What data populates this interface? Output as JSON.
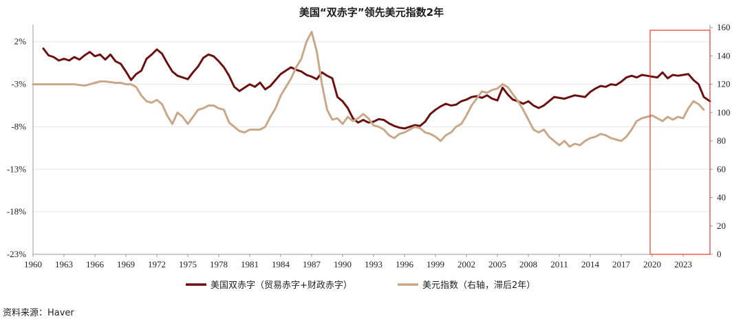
{
  "chart_data": {
    "type": "line",
    "title": "美国“双赤字”领先美元指数2年",
    "x_ticks": [
      "1960",
      "1963",
      "1966",
      "1969",
      "1972",
      "1975",
      "1978",
      "1981",
      "1984",
      "1987",
      "1990",
      "1993",
      "1996",
      "1999",
      "2002",
      "2005",
      "2008",
      "2011",
      "2014",
      "2017",
      "2020",
      "2023"
    ],
    "xlim": [
      1960,
      2025.6
    ],
    "y_left": {
      "ticks": [
        "2%",
        "-3%",
        "-8%",
        "-13%",
        "-18%",
        "-23%"
      ],
      "range": [
        -23,
        4
      ]
    },
    "y_right": {
      "ticks": [
        "0",
        "20",
        "40",
        "60",
        "80",
        "100",
        "120",
        "140",
        "160"
      ],
      "range": [
        0,
        162
      ]
    },
    "highlight_box": {
      "x_range": [
        2019.8,
        2025.6
      ],
      "color": "#e8322e"
    },
    "series": [
      {
        "name": "美国双赤字（贸易赤字+财政赤字）",
        "axis": "left",
        "color": "#6b0f0f",
        "points": [
          [
            1961.0,
            1.2
          ],
          [
            1961.5,
            0.4
          ],
          [
            1962.0,
            0.2
          ],
          [
            1962.5,
            -0.2
          ],
          [
            1963.0,
            0.0
          ],
          [
            1963.5,
            -0.2
          ],
          [
            1964.0,
            0.2
          ],
          [
            1964.5,
            -0.1
          ],
          [
            1965.0,
            0.4
          ],
          [
            1965.5,
            0.8
          ],
          [
            1966.0,
            0.3
          ],
          [
            1966.5,
            0.5
          ],
          [
            1967.0,
            -0.1
          ],
          [
            1967.5,
            0.5
          ],
          [
            1968.0,
            -0.3
          ],
          [
            1968.5,
            -0.6
          ],
          [
            1969.0,
            -1.5
          ],
          [
            1969.5,
            -2.5
          ],
          [
            1970.0,
            -1.8
          ],
          [
            1970.5,
            -1.4
          ],
          [
            1971.0,
            0.0
          ],
          [
            1971.5,
            0.5
          ],
          [
            1972.0,
            1.1
          ],
          [
            1972.5,
            0.6
          ],
          [
            1973.0,
            -0.5
          ],
          [
            1973.5,
            -1.5
          ],
          [
            1974.0,
            -2.0
          ],
          [
            1974.5,
            -2.2
          ],
          [
            1975.0,
            -2.4
          ],
          [
            1975.5,
            -1.6
          ],
          [
            1976.0,
            -0.9
          ],
          [
            1976.5,
            0.1
          ],
          [
            1977.0,
            0.5
          ],
          [
            1977.5,
            0.3
          ],
          [
            1978.0,
            -0.3
          ],
          [
            1978.5,
            -1.0
          ],
          [
            1979.0,
            -2.0
          ],
          [
            1979.5,
            -3.3
          ],
          [
            1980.0,
            -3.8
          ],
          [
            1980.5,
            -3.4
          ],
          [
            1981.0,
            -3.0
          ],
          [
            1981.5,
            -3.3
          ],
          [
            1982.0,
            -2.8
          ],
          [
            1982.5,
            -3.6
          ],
          [
            1983.0,
            -3.2
          ],
          [
            1983.5,
            -2.5
          ],
          [
            1984.0,
            -1.8
          ],
          [
            1984.5,
            -1.4
          ],
          [
            1985.0,
            -1.0
          ],
          [
            1985.5,
            -1.3
          ],
          [
            1986.0,
            -1.5
          ],
          [
            1986.5,
            -1.9
          ],
          [
            1987.0,
            -2.1
          ],
          [
            1987.5,
            -2.4
          ],
          [
            1988.0,
            -1.6
          ],
          [
            1988.5,
            -2.0
          ],
          [
            1989.0,
            -2.3
          ],
          [
            1989.5,
            -4.5
          ],
          [
            1990.0,
            -5.0
          ],
          [
            1990.5,
            -5.8
          ],
          [
            1991.0,
            -7.0
          ],
          [
            1991.5,
            -7.5
          ],
          [
            1992.0,
            -7.2
          ],
          [
            1992.5,
            -7.5
          ],
          [
            1993.0,
            -7.4
          ],
          [
            1993.5,
            -7.1
          ],
          [
            1994.0,
            -7.2
          ],
          [
            1994.5,
            -7.6
          ],
          [
            1995.0,
            -7.9
          ],
          [
            1995.5,
            -8.1
          ],
          [
            1996.0,
            -8.2
          ],
          [
            1996.5,
            -8.0
          ],
          [
            1997.0,
            -7.8
          ],
          [
            1997.5,
            -7.9
          ],
          [
            1998.0,
            -7.4
          ],
          [
            1998.5,
            -6.5
          ],
          [
            1999.0,
            -6.0
          ],
          [
            1999.5,
            -5.6
          ],
          [
            2000.0,
            -5.3
          ],
          [
            2000.5,
            -5.5
          ],
          [
            2001.0,
            -5.4
          ],
          [
            2001.5,
            -5.0
          ],
          [
            2002.0,
            -4.8
          ],
          [
            2002.5,
            -4.5
          ],
          [
            2003.0,
            -4.4
          ],
          [
            2003.5,
            -4.6
          ],
          [
            2004.0,
            -4.3
          ],
          [
            2004.5,
            -4.7
          ],
          [
            2005.0,
            -4.9
          ],
          [
            2005.5,
            -3.4
          ],
          [
            2006.0,
            -4.2
          ],
          [
            2006.5,
            -4.8
          ],
          [
            2007.0,
            -5.0
          ],
          [
            2007.5,
            -5.3
          ],
          [
            2008.0,
            -5.0
          ],
          [
            2008.5,
            -5.5
          ],
          [
            2009.0,
            -5.8
          ],
          [
            2009.5,
            -5.5
          ],
          [
            2010.0,
            -5.0
          ],
          [
            2010.5,
            -4.5
          ],
          [
            2011.0,
            -4.6
          ],
          [
            2011.5,
            -4.7
          ],
          [
            2012.0,
            -4.5
          ],
          [
            2012.5,
            -4.3
          ],
          [
            2013.0,
            -4.4
          ],
          [
            2013.5,
            -4.5
          ],
          [
            2014.0,
            -3.9
          ],
          [
            2014.5,
            -3.5
          ],
          [
            2015.0,
            -3.2
          ],
          [
            2015.5,
            -3.3
          ],
          [
            2016.0,
            -3.0
          ],
          [
            2016.5,
            -3.1
          ],
          [
            2017.0,
            -2.7
          ],
          [
            2017.5,
            -2.2
          ],
          [
            2018.0,
            -2.0
          ],
          [
            2018.5,
            -2.2
          ],
          [
            2019.0,
            -1.9
          ],
          [
            2019.5,
            -2.0
          ],
          [
            2020.0,
            -2.1
          ],
          [
            2020.5,
            -2.2
          ],
          [
            2021.0,
            -1.6
          ],
          [
            2021.5,
            -2.3
          ],
          [
            2022.0,
            -1.9
          ],
          [
            2022.5,
            -2.0
          ],
          [
            2023.0,
            -1.9
          ],
          [
            2023.5,
            -1.8
          ],
          [
            2024.0,
            -2.5
          ],
          [
            2024.5,
            -3.0
          ],
          [
            2025.0,
            -4.5
          ],
          [
            2025.6,
            -5.0
          ]
        ]
      },
      {
        "name": "美元指数（右轴，滞后2年）",
        "axis": "right",
        "color": "#c9a889",
        "points": [
          [
            1960.0,
            120
          ],
          [
            1962.0,
            120
          ],
          [
            1964.0,
            120
          ],
          [
            1965.0,
            119
          ],
          [
            1966.0,
            121
          ],
          [
            1966.5,
            122
          ],
          [
            1967.0,
            122
          ],
          [
            1968.0,
            121
          ],
          [
            1968.5,
            121
          ],
          [
            1969.0,
            120
          ],
          [
            1969.5,
            120
          ],
          [
            1970.0,
            118
          ],
          [
            1970.5,
            112
          ],
          [
            1971.0,
            108
          ],
          [
            1971.5,
            107
          ],
          [
            1972.0,
            109
          ],
          [
            1972.5,
            106
          ],
          [
            1973.0,
            98
          ],
          [
            1973.5,
            92
          ],
          [
            1974.0,
            100
          ],
          [
            1974.5,
            97
          ],
          [
            1975.0,
            92
          ],
          [
            1975.5,
            97
          ],
          [
            1976.0,
            102
          ],
          [
            1976.5,
            103
          ],
          [
            1977.0,
            105
          ],
          [
            1977.5,
            105
          ],
          [
            1978.0,
            103
          ],
          [
            1978.5,
            102
          ],
          [
            1979.0,
            93
          ],
          [
            1979.5,
            90
          ],
          [
            1980.0,
            87
          ],
          [
            1980.5,
            86
          ],
          [
            1981.0,
            88
          ],
          [
            1981.5,
            88
          ],
          [
            1982.0,
            88
          ],
          [
            1982.5,
            90
          ],
          [
            1983.0,
            97
          ],
          [
            1983.5,
            103
          ],
          [
            1984.0,
            112
          ],
          [
            1984.5,
            118
          ],
          [
            1985.0,
            124
          ],
          [
            1985.5,
            132
          ],
          [
            1986.0,
            138
          ],
          [
            1986.5,
            150
          ],
          [
            1987.0,
            157
          ],
          [
            1987.5,
            143
          ],
          [
            1988.0,
            120
          ],
          [
            1988.5,
            102
          ],
          [
            1989.0,
            95
          ],
          [
            1989.5,
            96
          ],
          [
            1990.0,
            92
          ],
          [
            1990.5,
            97
          ],
          [
            1991.0,
            94
          ],
          [
            1991.5,
            96
          ],
          [
            1992.0,
            99
          ],
          [
            1992.5,
            96
          ],
          [
            1993.0,
            91
          ],
          [
            1993.5,
            90
          ],
          [
            1994.0,
            88
          ],
          [
            1994.5,
            84
          ],
          [
            1995.0,
            82
          ],
          [
            1995.5,
            85
          ],
          [
            1996.0,
            86
          ],
          [
            1996.5,
            88
          ],
          [
            1997.0,
            90
          ],
          [
            1997.5,
            89
          ],
          [
            1998.0,
            86
          ],
          [
            1998.5,
            85
          ],
          [
            1999.0,
            83
          ],
          [
            1999.5,
            80
          ],
          [
            2000.0,
            84
          ],
          [
            2000.5,
            86
          ],
          [
            2001.0,
            90
          ],
          [
            2001.5,
            92
          ],
          [
            2002.0,
            98
          ],
          [
            2002.5,
            105
          ],
          [
            2003.0,
            110
          ],
          [
            2003.5,
            115
          ],
          [
            2004.0,
            114
          ],
          [
            2004.5,
            116
          ],
          [
            2005.0,
            117
          ],
          [
            2005.5,
            120
          ],
          [
            2006.0,
            118
          ],
          [
            2006.5,
            113
          ],
          [
            2007.0,
            108
          ],
          [
            2007.5,
            102
          ],
          [
            2008.0,
            95
          ],
          [
            2008.5,
            88
          ],
          [
            2009.0,
            86
          ],
          [
            2009.5,
            88
          ],
          [
            2010.0,
            83
          ],
          [
            2010.5,
            80
          ],
          [
            2011.0,
            77
          ],
          [
            2011.5,
            80
          ],
          [
            2012.0,
            76
          ],
          [
            2012.5,
            78
          ],
          [
            2013.0,
            77
          ],
          [
            2013.5,
            80
          ],
          [
            2014.0,
            82
          ],
          [
            2014.5,
            83
          ],
          [
            2015.0,
            85
          ],
          [
            2015.5,
            84
          ],
          [
            2016.0,
            82
          ],
          [
            2016.5,
            81
          ],
          [
            2017.0,
            80
          ],
          [
            2017.5,
            83
          ],
          [
            2018.0,
            88
          ],
          [
            2018.5,
            94
          ],
          [
            2019.0,
            96
          ],
          [
            2019.5,
            97
          ],
          [
            2020.0,
            98
          ],
          [
            2020.5,
            96
          ],
          [
            2021.0,
            94
          ],
          [
            2021.5,
            97
          ],
          [
            2022.0,
            95
          ],
          [
            2022.5,
            97
          ],
          [
            2023.0,
            96
          ],
          [
            2023.5,
            103
          ],
          [
            2024.0,
            108
          ],
          [
            2024.5,
            106
          ],
          [
            2025.0,
            102
          ]
        ]
      }
    ]
  },
  "source_text": "资料来源：Haver"
}
